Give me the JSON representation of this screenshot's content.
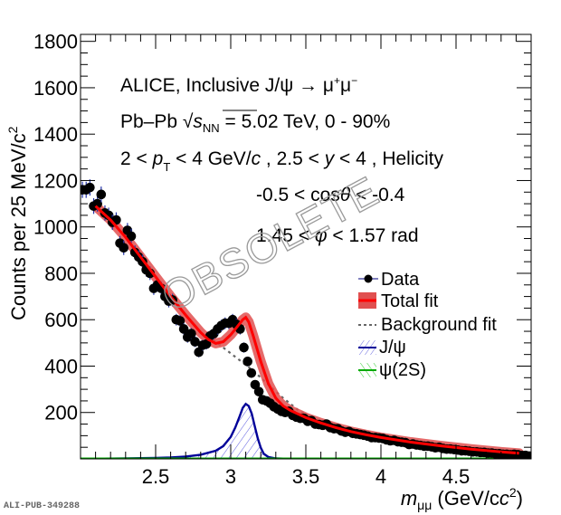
{
  "chart_data": {
    "type": "scatter",
    "title": "",
    "xlabel": "m_μμ (GeV/c²)",
    "xlabel_parts": {
      "main": "m",
      "sub": "μμ",
      "unit": " (GeV/c",
      "sup": "2",
      "close": ")"
    },
    "ylabel": "Counts per  25 MeV/c²",
    "ylabel_parts": {
      "main": "Counts per  25 MeV/c",
      "sup": "2"
    },
    "xlim": [
      2.0,
      5.0
    ],
    "ylim": [
      0,
      1830
    ],
    "xticks": [
      2.5,
      3,
      3.5,
      4,
      4.5
    ],
    "xtick_labels": [
      "2.5",
      "3",
      "3.5",
      "4",
      "4.5"
    ],
    "yticks": [
      200,
      400,
      600,
      800,
      1000,
      1200,
      1400,
      1600,
      1800
    ],
    "ytick_labels": [
      "200",
      "400",
      "600",
      "800",
      "1000",
      "1200",
      "1400",
      "1600",
      "1800"
    ],
    "grid": false,
    "legend_position": "right",
    "annotations": [
      "ALICE, Inclusive J/ψ → μ⁺μ⁻",
      "Pb–Pb √s_NN = 5.02 TeV, 0 - 90%",
      "2 < p_T < 4 GeV/c , 2.5 < y < 4 , Helicity",
      "-0.5 < cosθ < -0.4",
      "1.45 < φ < 1.57 rad"
    ],
    "annotation_parts": {
      "line1": "ALICE, Inclusive J/ψ → μ",
      "line1_sup1": "+",
      "line1_mid": "μ",
      "line1_sup2": "−",
      "line2_a": "Pb–Pb ",
      "line2_s": "s",
      "line2_sub": "NN",
      "line2_b": " = 5.02 TeV, 0 - 90%",
      "line3_a": "2 < ",
      "line3_p": "p",
      "line3_sub": "T",
      "line3_b": " < 4 GeV/",
      "line3_c": "c",
      "line3_d": " , 2.5 < ",
      "line3_y": "y",
      "line3_e": " < 4 , Helicity",
      "line4_a": "-0.5 < cos",
      "line4_theta": "θ",
      "line4_b": " < -0.4",
      "line5_a": "1.45 < ",
      "line5_phi": "φ",
      "line5_b": " < 1.57 rad"
    },
    "watermark": "OBSOLETE",
    "stamp": "ALI-PUB-349288",
    "legend": [
      {
        "label": "Data",
        "color": "#000000",
        "style": "marker"
      },
      {
        "label": "Total fit",
        "color": "#ff0000",
        "band": "#e05050",
        "style": "line-band"
      },
      {
        "label": "Background fit",
        "color": "#666666",
        "style": "dotted"
      },
      {
        "label": "J/ψ",
        "color": "#000099",
        "hatch": "#6a6ae0",
        "style": "line-hatch"
      },
      {
        "label": "ψ(2S)",
        "color": "#00aa00",
        "hatch": "#33cc33",
        "style": "line-hatch"
      }
    ],
    "series": [
      {
        "name": "Data",
        "color": "#000000",
        "x": [
          2.0125,
          2.0375,
          2.0625,
          2.0875,
          2.1125,
          2.1375,
          2.1625,
          2.1875,
          2.2125,
          2.2375,
          2.2625,
          2.2875,
          2.3125,
          2.3375,
          2.3625,
          2.3875,
          2.4125,
          2.4375,
          2.4625,
          2.4875,
          2.5125,
          2.5375,
          2.5625,
          2.5875,
          2.6125,
          2.6375,
          2.6625,
          2.6875,
          2.7125,
          2.7375,
          2.7625,
          2.7875,
          2.8125,
          2.8375,
          2.8625,
          2.8875,
          2.9125,
          2.9375,
          2.9625,
          2.9875,
          3.0125,
          3.0375,
          3.0625,
          3.0875,
          3.1125,
          3.1375,
          3.1625,
          3.1875,
          3.2125,
          3.2375,
          3.2625,
          3.2875,
          3.3125,
          3.3375,
          3.3625,
          3.3875,
          3.4125,
          3.4375,
          3.4625,
          3.4875,
          3.5125,
          3.5375,
          3.5625,
          3.5875,
          3.6125,
          3.6375,
          3.6625,
          3.6875,
          3.7125,
          3.7375,
          3.7625,
          3.7875,
          3.8125,
          3.8375,
          3.8625,
          3.8875,
          3.9125,
          3.9375,
          3.9625,
          3.9875,
          4.0125,
          4.0375,
          4.0625,
          4.0875,
          4.1125,
          4.1375,
          4.1625,
          4.1875,
          4.2125,
          4.2375,
          4.2625,
          4.2875,
          4.3125,
          4.3375,
          4.3625,
          4.3875,
          4.4125,
          4.4375,
          4.4625,
          4.4875,
          4.5125,
          4.5375,
          4.5625,
          4.5875,
          4.6125,
          4.6375,
          4.6625,
          4.6875,
          4.7125,
          4.7375,
          4.7625,
          4.7875,
          4.8125,
          4.8375,
          4.8625,
          4.8875,
          4.9125,
          4.9375,
          4.9625,
          4.9875
        ],
        "y": [
          1160,
          1160,
          1170,
          1090,
          1100,
          1140,
          1060,
          1050,
          1020,
          1030,
          930,
          910,
          985,
          960,
          890,
          870,
          850,
          815,
          800,
          735,
          750,
          735,
          700,
          680,
          685,
          600,
          595,
          560,
          525,
          540,
          505,
          460,
          490,
          495,
          530,
          540,
          560,
          575,
          585,
          585,
          600,
          580,
          560,
          480,
          420,
          370,
          320,
          290,
          255,
          250,
          240,
          225,
          215,
          205,
          200,
          205,
          188,
          180,
          175,
          175,
          162,
          165,
          150,
          148,
          145,
          150,
          135,
          130,
          130,
          120,
          115,
          118,
          110,
          108,
          105,
          102,
          98,
          92,
          92,
          90,
          88,
          82,
          78,
          80,
          74,
          72,
          70,
          62,
          64,
          60,
          58,
          55,
          55,
          52,
          48,
          50,
          45,
          42,
          42,
          40,
          38,
          35,
          35,
          33,
          30,
          30,
          28,
          28,
          25,
          25,
          22,
          22,
          20,
          20,
          18,
          20,
          18,
          15,
          15,
          12
        ],
        "yerr": [
          35,
          35,
          35,
          34,
          34,
          34,
          33,
          33,
          33,
          33,
          31,
          31,
          32,
          32,
          30,
          30,
          30,
          29,
          29,
          28,
          28,
          28,
          27,
          27,
          27,
          25,
          25,
          24,
          24,
          24,
          23,
          22,
          23,
          23,
          24,
          24,
          24,
          25,
          25,
          25,
          25,
          25,
          24,
          22,
          21,
          20,
          18,
          17,
          16,
          16,
          16,
          15,
          15,
          15,
          14,
          14,
          14,
          14,
          13,
          13,
          13,
          13,
          12,
          12,
          12,
          12,
          12,
          12,
          12,
          11,
          11,
          11,
          11,
          11,
          11,
          10,
          10,
          10,
          10,
          10,
          10,
          9,
          9,
          9,
          9,
          9,
          9,
          8,
          8,
          8,
          8,
          8,
          8,
          8,
          7,
          7,
          7,
          7,
          7,
          7,
          7,
          6,
          6,
          6,
          6,
          6,
          6,
          6,
          5,
          5,
          5,
          5,
          5,
          5,
          5,
          5,
          5,
          4,
          4,
          4
        ]
      },
      {
        "name": "Total fit",
        "color": "#ff0000",
        "x": [
          2.1,
          2.2,
          2.3,
          2.4,
          2.5,
          2.6,
          2.7,
          2.8,
          2.85,
          2.9,
          2.95,
          3.0,
          3.05,
          3.08,
          3.1,
          3.12,
          3.15,
          3.2,
          3.25,
          3.3,
          3.35,
          3.4,
          3.5,
          3.6,
          3.7,
          3.8,
          3.9,
          4.0,
          4.2,
          4.4,
          4.6,
          4.8,
          4.92
        ],
        "y": [
          1090,
          1030,
          955,
          870,
          785,
          700,
          620,
          545,
          515,
          498,
          505,
          535,
          575,
          600,
          610,
          590,
          530,
          420,
          325,
          262,
          228,
          208,
          178,
          155,
          135,
          118,
          104,
          92,
          72,
          56,
          42,
          30,
          24
        ]
      },
      {
        "name": "Background fit",
        "color": "#666666",
        "x": [
          2.85,
          2.95,
          3.05,
          3.15,
          3.25,
          3.35,
          3.45,
          3.55,
          3.7,
          3.9,
          4.1,
          4.3,
          4.5,
          4.7,
          4.9,
          4.98
        ],
        "y": [
          530,
          480,
          430,
          380,
          320,
          262,
          210,
          172,
          135,
          104,
          82,
          63,
          48,
          35,
          24,
          20
        ]
      },
      {
        "name": "J/ψ",
        "color": "#000099",
        "x": [
          2.0,
          2.3,
          2.5,
          2.6,
          2.7,
          2.8,
          2.9,
          2.95,
          3.0,
          3.03,
          3.06,
          3.08,
          3.1,
          3.12,
          3.14,
          3.16,
          3.18,
          3.2,
          3.22,
          3.25,
          3.3,
          3.4,
          3.6,
          5.0
        ],
        "y": [
          0,
          2,
          4,
          6,
          10,
          18,
          35,
          55,
          95,
          135,
          185,
          220,
          237,
          228,
          195,
          140,
          88,
          48,
          22,
          8,
          2,
          0,
          0,
          0
        ]
      },
      {
        "name": "ψ(2S)",
        "color": "#00aa00",
        "x": [
          2.0,
          5.0
        ],
        "y": [
          0,
          0
        ]
      }
    ]
  }
}
